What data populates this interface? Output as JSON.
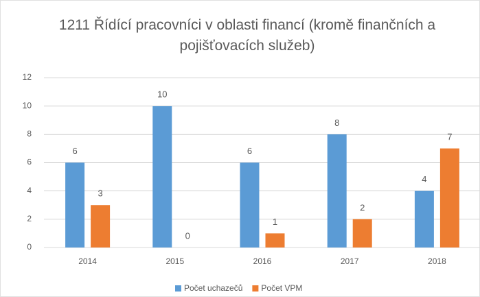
{
  "chart_data": {
    "type": "bar",
    "title": "1211 Řídící pracovníci v oblasti financí (kromě finančních a pojišťovacích služeb)",
    "categories": [
      "2014",
      "2015",
      "2016",
      "2017",
      "2018"
    ],
    "series": [
      {
        "name": "Počet uchazečů",
        "color": "#5b9bd5",
        "values": [
          6,
          10,
          6,
          8,
          4
        ]
      },
      {
        "name": "Počet VPM",
        "color": "#ed7d31",
        "values": [
          3,
          0,
          1,
          2,
          7
        ]
      }
    ],
    "ylim": [
      0,
      12
    ],
    "yticks": [
      0,
      2,
      4,
      6,
      8,
      10,
      12
    ],
    "grid": true,
    "legend": "bottom"
  }
}
